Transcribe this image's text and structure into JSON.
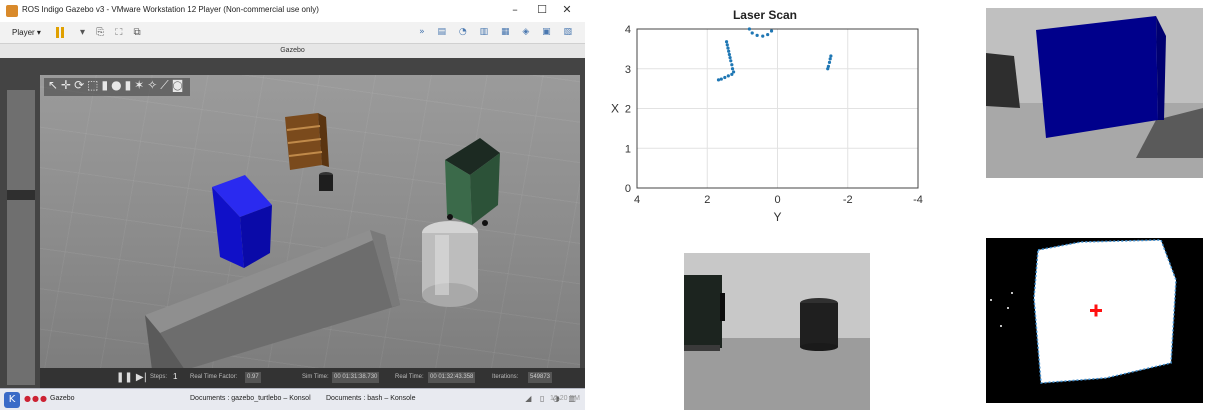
{
  "window": {
    "title": "ROS Indigo Gazebo v3 - VMware Workstation 12 Player (Non-commercial use only)",
    "player_menu": "Player ▾",
    "gazebo_title": "Gazebo"
  },
  "gazebo": {
    "steps_label": "Steps:",
    "steps_value": "1",
    "real_time_factor_label": "Real Time Factor:",
    "real_time_factor": "0.97",
    "sim_time_label": "Sim Time:",
    "sim_time": "00 01:31:38.730",
    "real_time_label": "Real Time:",
    "real_time": "00 01:32:43.358",
    "iterations_label": "Iterations:",
    "iterations": "549873"
  },
  "taskbar": {
    "items": [
      "Gazebo",
      "Documents : gazebo_turtlebo – Konsol",
      "Documents : bash – Konsole"
    ],
    "clock": "12:20 PM"
  },
  "colors": {
    "laser": "#1f77b4",
    "cube_blue": "#0a0aa8",
    "marker_red": "#ff1010"
  },
  "chart_data": {
    "type": "scatter",
    "title": "Laser Scan",
    "xlabel": "Y",
    "ylabel": "X",
    "xlim": [
      4,
      -4
    ],
    "ylim": [
      0,
      4
    ],
    "xticks": [
      4,
      2,
      0,
      -2,
      -4
    ],
    "yticks": [
      0,
      1,
      2,
      3,
      4
    ],
    "grid": true,
    "series": [
      {
        "points": [
          [
            1.45,
            3.68
          ],
          [
            1.43,
            3.6
          ],
          [
            1.41,
            3.52
          ],
          [
            1.39,
            3.44
          ],
          [
            1.37,
            3.36
          ],
          [
            1.35,
            3.28
          ],
          [
            1.33,
            3.2
          ],
          [
            1.3,
            3.1
          ],
          [
            1.28,
            3.0
          ],
          [
            1.25,
            2.92
          ],
          [
            1.3,
            2.86
          ],
          [
            1.4,
            2.82
          ],
          [
            1.5,
            2.78
          ],
          [
            1.6,
            2.74
          ],
          [
            1.68,
            2.72
          ],
          [
            0.8,
            4.0
          ],
          [
            0.72,
            3.9
          ],
          [
            0.58,
            3.84
          ],
          [
            0.42,
            3.82
          ],
          [
            0.28,
            3.86
          ],
          [
            0.17,
            3.95
          ],
          [
            -1.52,
            3.32
          ],
          [
            -1.5,
            3.25
          ],
          [
            -1.48,
            3.16
          ],
          [
            -1.45,
            3.06
          ],
          [
            -1.43,
            3.0
          ]
        ]
      }
    ]
  }
}
